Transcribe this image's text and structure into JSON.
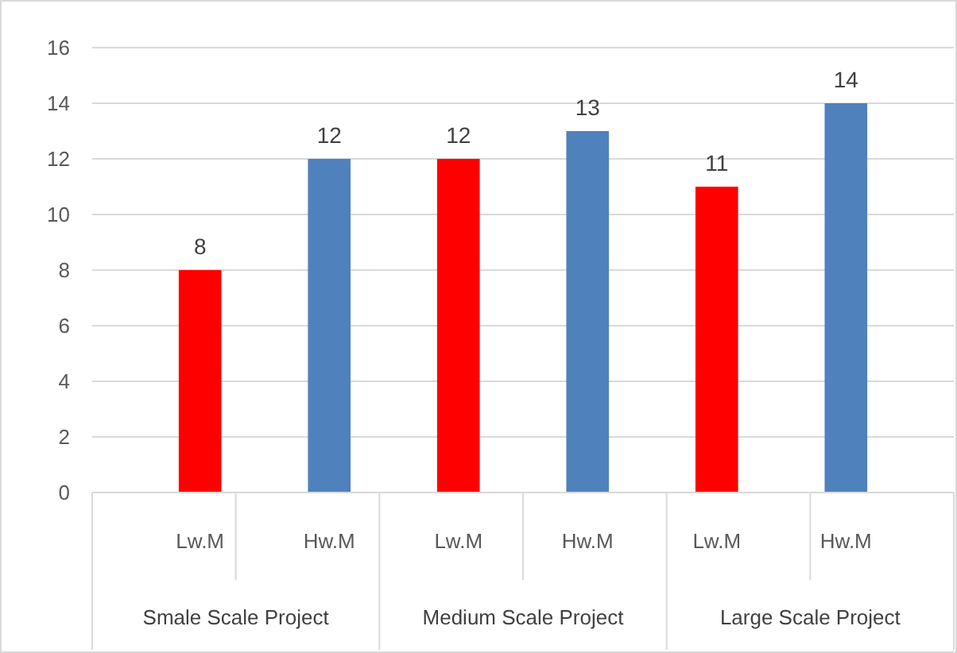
{
  "chart_data": {
    "type": "bar",
    "categories": [
      "Lw.M",
      "Hw.M",
      "Lw.M",
      "Hw.M",
      "Lw.M",
      "Hw.M"
    ],
    "values": [
      8,
      12,
      12,
      13,
      11,
      14
    ],
    "colors": [
      "#ff0000",
      "#4f81bd",
      "#ff0000",
      "#4f81bd",
      "#ff0000",
      "#4f81bd"
    ],
    "ylim": [
      0,
      16
    ],
    "yticks": [
      0,
      2,
      4,
      6,
      8,
      10,
      12,
      14,
      16
    ],
    "grid": "y",
    "data_labels": true,
    "annotations": [
      "Smale Scale Project",
      "Medium Scale Project",
      "Large Scale Project"
    ]
  }
}
